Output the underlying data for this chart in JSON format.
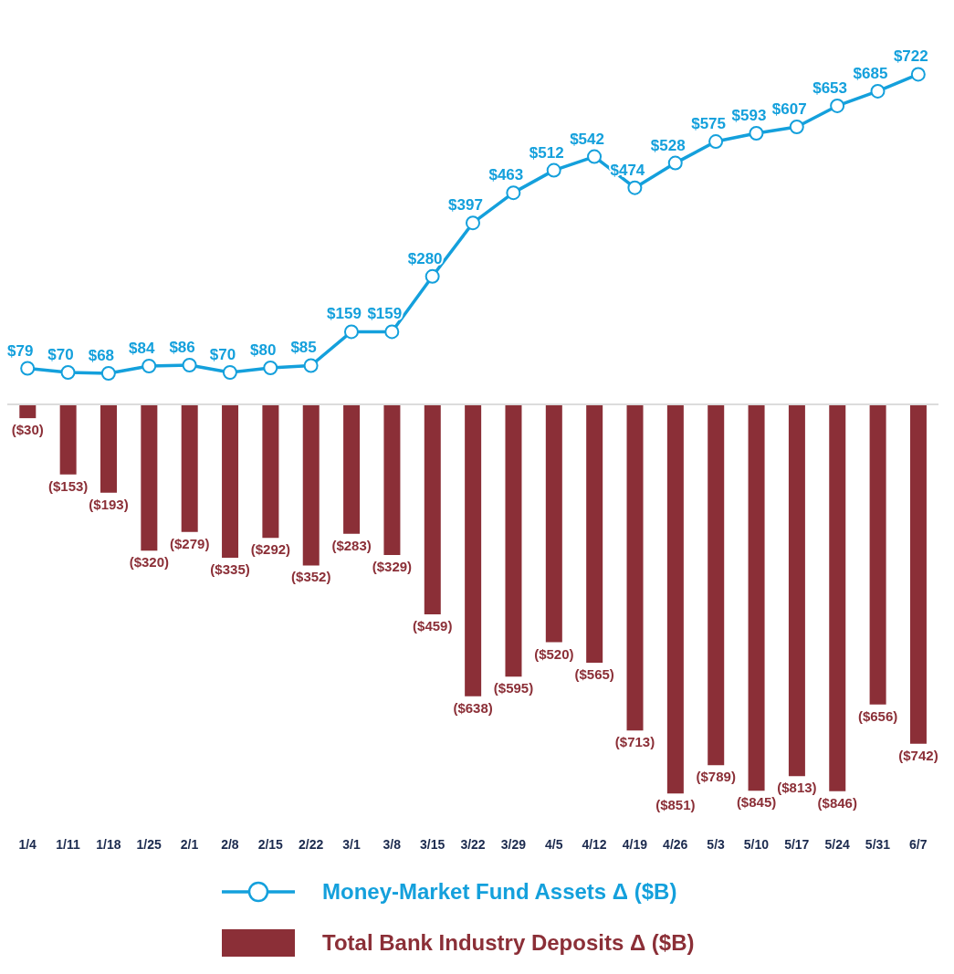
{
  "chart_data": {
    "type": "bar",
    "categories": [
      "1/4",
      "1/11",
      "1/18",
      "1/25",
      "2/1",
      "2/8",
      "2/15",
      "2/22",
      "3/1",
      "3/8",
      "3/15",
      "3/22",
      "3/29",
      "4/5",
      "4/12",
      "4/19",
      "4/26",
      "5/3",
      "5/10",
      "5/17",
      "5/24",
      "5/31",
      "6/7"
    ],
    "series": [
      {
        "name": "Money-Market Fund Assets Δ ($B)",
        "type": "line",
        "color": "#14a0dc",
        "marker": "circle",
        "values": [
          79,
          70,
          68,
          84,
          86,
          70,
          80,
          85,
          159,
          159,
          280,
          397,
          463,
          512,
          542,
          474,
          528,
          575,
          593,
          607,
          653,
          685,
          722
        ],
        "value_labels": [
          "$79",
          "$70",
          "$68",
          "$84",
          "$86",
          "$70",
          "$80",
          "$85",
          "$159",
          "$159",
          "$280",
          "$397",
          "$463",
          "$512",
          "$542",
          "$474",
          "$528",
          "$575",
          "$593",
          "$607",
          "$653",
          "$685",
          "$722"
        ]
      },
      {
        "name": "Total Bank Industry Deposits Δ ($B)",
        "color": "#8b2f37",
        "values": [
          -30,
          -153,
          -193,
          -320,
          -279,
          -335,
          -292,
          -352,
          -283,
          -329,
          -459,
          -638,
          -595,
          -520,
          -565,
          -713,
          -851,
          -789,
          -845,
          -813,
          -846,
          -656,
          -742
        ],
        "value_labels": [
          "($30)",
          "($153)",
          "($193)",
          "($320)",
          "($279)",
          "($335)",
          "($292)",
          "($352)",
          "($283)",
          "($329)",
          "($459)",
          "($638)",
          "($595)",
          "($520)",
          "($565)",
          "($713)",
          "($851)",
          "($789)",
          "($845)",
          "($813)",
          "($846)",
          "($656)",
          "($742)"
        ]
      }
    ],
    "ref_lines": [
      {
        "axis": "y",
        "value": 0,
        "color": "#dcdcdc"
      }
    ],
    "legend": "bottom",
    "grid": false
  }
}
